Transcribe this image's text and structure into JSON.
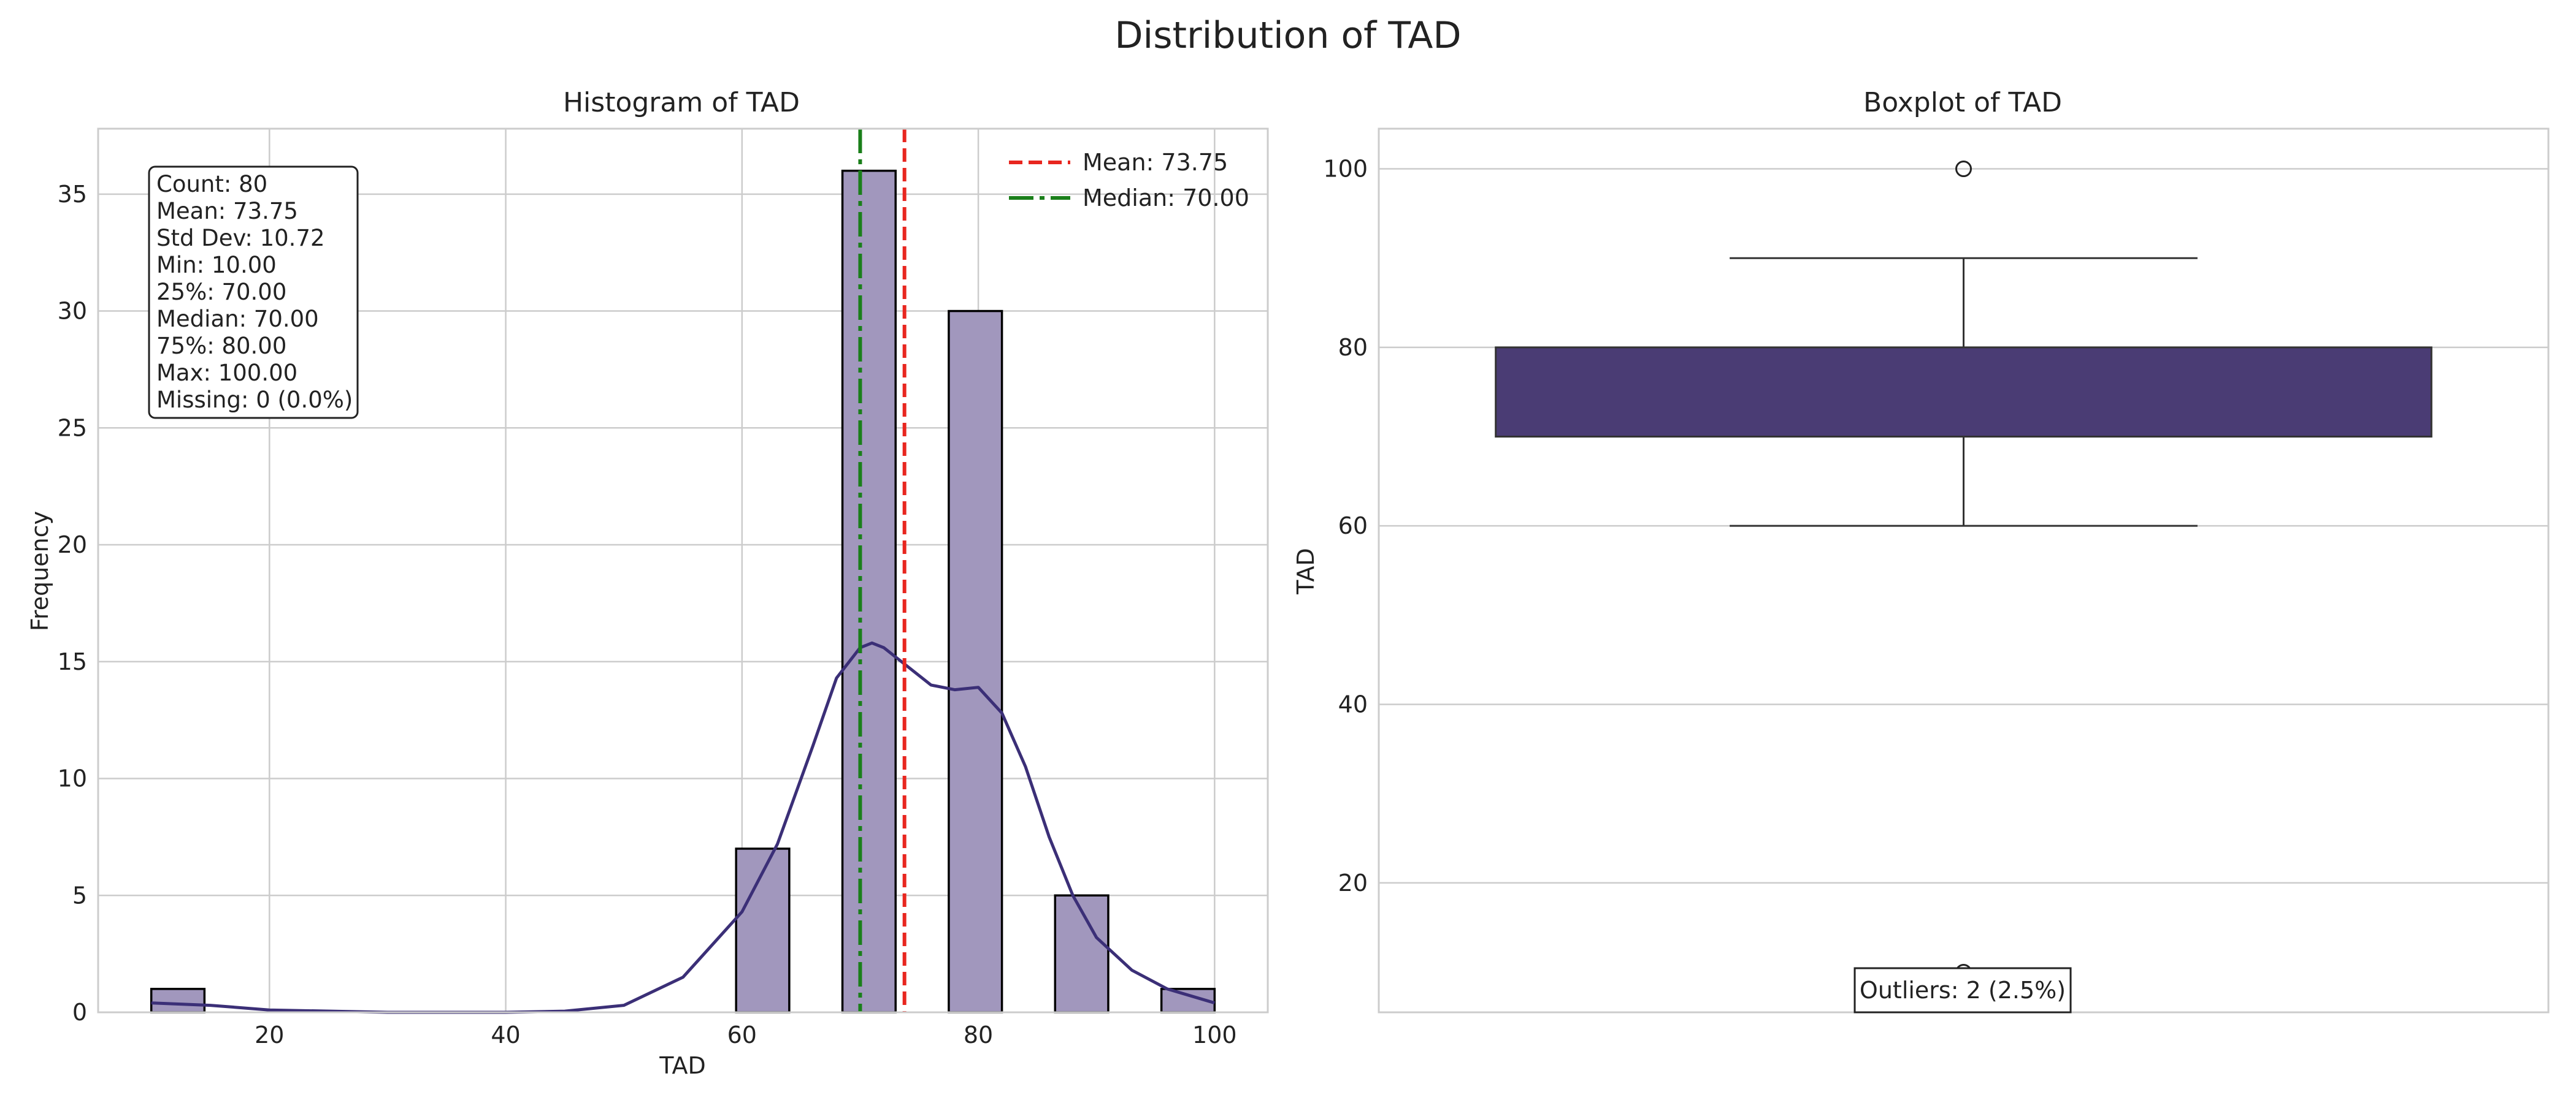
{
  "figure": {
    "title": "Distribution of TAD"
  },
  "chart_data": [
    {
      "type": "bar",
      "subtype": "histogram",
      "title": "Histogram of TAD",
      "xlabel": "TAD",
      "ylabel": "Frequency",
      "xlim": [
        5.5,
        104.5
      ],
      "ylim": [
        0,
        37.8
      ],
      "xticks": [
        20,
        40,
        60,
        80,
        100
      ],
      "yticks": [
        0,
        5,
        10,
        15,
        20,
        25,
        30,
        35
      ],
      "grid": true,
      "bin_width": 4.5,
      "bins": [
        {
          "x0": 10.0,
          "x1": 14.5,
          "count": 1
        },
        {
          "x0": 59.5,
          "x1": 64.0,
          "count": 7
        },
        {
          "x0": 68.5,
          "x1": 73.0,
          "count": 36
        },
        {
          "x0": 77.5,
          "x1": 82.0,
          "count": 30
        },
        {
          "x0": 86.5,
          "x1": 91.0,
          "count": 5
        },
        {
          "x0": 95.5,
          "x1": 100.0,
          "count": 1
        }
      ],
      "kde": {
        "x": [
          10,
          15,
          20,
          30,
          40,
          45,
          50,
          55,
          60,
          63,
          66,
          68,
          70,
          71,
          72,
          74,
          76,
          78,
          80,
          82,
          84,
          86,
          88,
          90,
          93,
          96,
          100
        ],
        "y": [
          0.4,
          0.3,
          0.1,
          0.0,
          0.0,
          0.05,
          0.3,
          1.5,
          4.3,
          7.2,
          11.4,
          14.3,
          15.6,
          15.8,
          15.6,
          14.8,
          14.0,
          13.8,
          13.9,
          12.8,
          10.5,
          7.5,
          5.0,
          3.2,
          1.8,
          1.0,
          0.4
        ]
      },
      "reference_lines": [
        {
          "label": "Mean: 73.75",
          "value": 73.75,
          "color": "#e8261f",
          "style": "dashed"
        },
        {
          "label": "Median: 70.00",
          "value": 70.0,
          "color": "#1a7f1a",
          "style": "dashdot"
        }
      ],
      "legend_position": "top-right",
      "stats_box": [
        "Count: 80",
        "Mean: 73.75",
        "Std Dev: 10.72",
        "Min: 10.00",
        "25%: 70.00",
        "Median: 70.00",
        "75%: 80.00",
        "Max: 100.00",
        "Missing: 0 (0.0%)"
      ],
      "colors": {
        "bar": "#a197bd",
        "kde": "#3b2f77"
      }
    },
    {
      "type": "boxplot",
      "title": "Boxplot of TAD",
      "ylabel": "TAD",
      "ylim": [
        5.5,
        104.5
      ],
      "yticks": [
        20,
        40,
        60,
        80,
        100
      ],
      "grid": true,
      "q1": 70,
      "median": 70,
      "q3": 80,
      "whisker_low": 60,
      "whisker_high": 90,
      "outliers": [
        100,
        10
      ],
      "annotation": "Outliers: 2 (2.5%)",
      "colors": {
        "box": "#4a3c74"
      }
    }
  ]
}
